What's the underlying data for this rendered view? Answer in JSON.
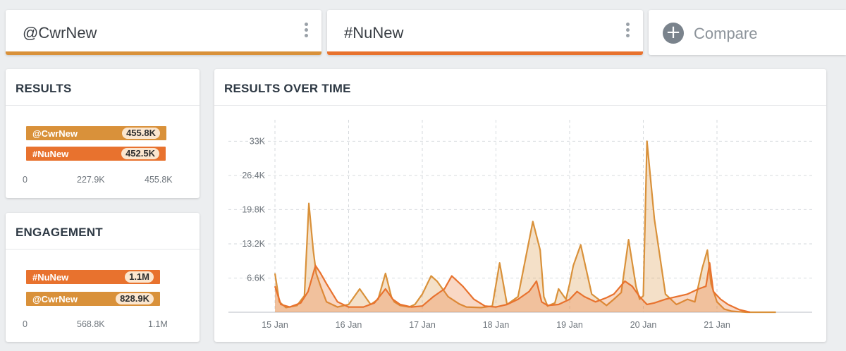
{
  "tabs": [
    {
      "name": "@CwrNew",
      "color": "#d9913a"
    },
    {
      "name": "#NuNew",
      "color": "#e8722e"
    }
  ],
  "compare": {
    "label": "Compare",
    "icon": "plus-icon"
  },
  "colors": {
    "cwrnew": "#d9913a",
    "nunew": "#e8722e",
    "pill": "#fbe6cf"
  },
  "results_card": {
    "title": "RESULTS",
    "bars": [
      {
        "label": "@CwrNew",
        "value_label": "455.8K",
        "value": 455.8,
        "color": "#d9913a"
      },
      {
        "label": "#NuNew",
        "value_label": "452.5K",
        "value": 452.5,
        "color": "#e8722e"
      }
    ],
    "axis": [
      "0",
      "227.9K",
      "455.8K"
    ]
  },
  "engagement_card": {
    "title": "ENGAGEMENT",
    "bars": [
      {
        "label": "#NuNew",
        "value_label": "1.1M",
        "value": 1.1,
        "color": "#e8722e"
      },
      {
        "label": "@CwrNew",
        "value_label": "828.9K",
        "value": 0.8289,
        "color": "#d9913a"
      }
    ],
    "axis": [
      "0",
      "568.8K",
      "1.1M"
    ]
  },
  "timeline_card": {
    "title": "RESULTS OVER TIME"
  },
  "chart_data": {
    "type": "area",
    "x_ticks": [
      "15 Jan",
      "16 Jan",
      "17 Jan",
      "18 Jan",
      "19 Jan",
      "20 Jan",
      "21 Jan"
    ],
    "y_ticks": [
      "6.6K",
      "13.2K",
      "19.8K",
      "26.4K",
      "33K"
    ],
    "ylim": [
      0,
      34000
    ],
    "grid": true,
    "series": [
      {
        "name": "@CwrNew",
        "color": "#d9913a",
        "x": [
          0,
          0.06,
          0.15,
          0.3,
          0.4,
          0.46,
          0.52,
          0.56,
          0.62,
          0.7,
          0.85,
          1.0,
          1.15,
          1.3,
          1.4,
          1.5,
          1.58,
          1.62,
          1.7,
          1.82,
          1.9,
          2.0,
          2.12,
          2.2,
          2.35,
          2.5,
          2.6,
          2.8,
          2.95,
          3.05,
          3.15,
          3.3,
          3.5,
          3.6,
          3.65,
          3.7,
          3.8,
          3.85,
          3.95,
          4.0,
          4.05,
          4.15,
          4.3,
          4.5,
          4.6,
          4.7,
          4.8,
          4.9,
          4.95,
          5.0,
          5.05,
          5.15,
          5.3,
          5.45,
          5.6,
          5.7,
          5.8,
          5.87,
          5.92,
          6.0,
          6.1,
          6.2,
          6.3,
          6.4,
          6.5,
          6.55,
          6.62,
          6.7,
          6.8
        ],
        "y": [
          7500,
          2000,
          900,
          1300,
          3200,
          21000,
          12000,
          7500,
          5000,
          2000,
          1000,
          1500,
          4500,
          1500,
          2500,
          7500,
          3000,
          2000,
          1300,
          1000,
          1500,
          3500,
          7000,
          6000,
          3000,
          1600,
          1000,
          900,
          1200,
          9500,
          1500,
          3000,
          17500,
          12000,
          3000,
          1200,
          1800,
          4500,
          2500,
          5500,
          9000,
          13000,
          3500,
          1300,
          2500,
          3800,
          14000,
          5000,
          2500,
          3200,
          33000,
          18000,
          3500,
          1500,
          2500,
          2000,
          8500,
          12000,
          5500,
          2000,
          600,
          200,
          100,
          0,
          0,
          0,
          0,
          0,
          0
        ]
      },
      {
        "name": "#NuNew",
        "color": "#e8722e",
        "x": [
          0,
          0.08,
          0.2,
          0.35,
          0.45,
          0.55,
          0.62,
          0.7,
          0.85,
          1.0,
          1.2,
          1.35,
          1.5,
          1.6,
          1.7,
          1.85,
          2.0,
          2.15,
          2.3,
          2.4,
          2.55,
          2.7,
          2.85,
          3.0,
          3.15,
          3.3,
          3.45,
          3.55,
          3.62,
          3.7,
          3.85,
          4.0,
          4.1,
          4.2,
          4.35,
          4.5,
          4.6,
          4.75,
          4.85,
          4.95,
          5.05,
          5.15,
          5.3,
          5.45,
          5.6,
          5.75,
          5.85,
          5.9,
          5.95,
          6.05,
          6.15,
          6.3,
          6.45
        ],
        "y": [
          5000,
          1500,
          1000,
          1800,
          4000,
          9000,
          7500,
          5500,
          2000,
          1000,
          1000,
          1800,
          4500,
          2500,
          1500,
          1000,
          1200,
          3000,
          4500,
          7000,
          5000,
          2500,
          1200,
          1000,
          1500,
          2500,
          4000,
          6000,
          2000,
          1300,
          1500,
          2500,
          4000,
          3000,
          2000,
          2800,
          3500,
          6000,
          5000,
          3000,
          1500,
          1800,
          2500,
          3000,
          3500,
          4500,
          5000,
          9500,
          4000,
          2500,
          1500,
          500,
          0
        ]
      }
    ]
  }
}
